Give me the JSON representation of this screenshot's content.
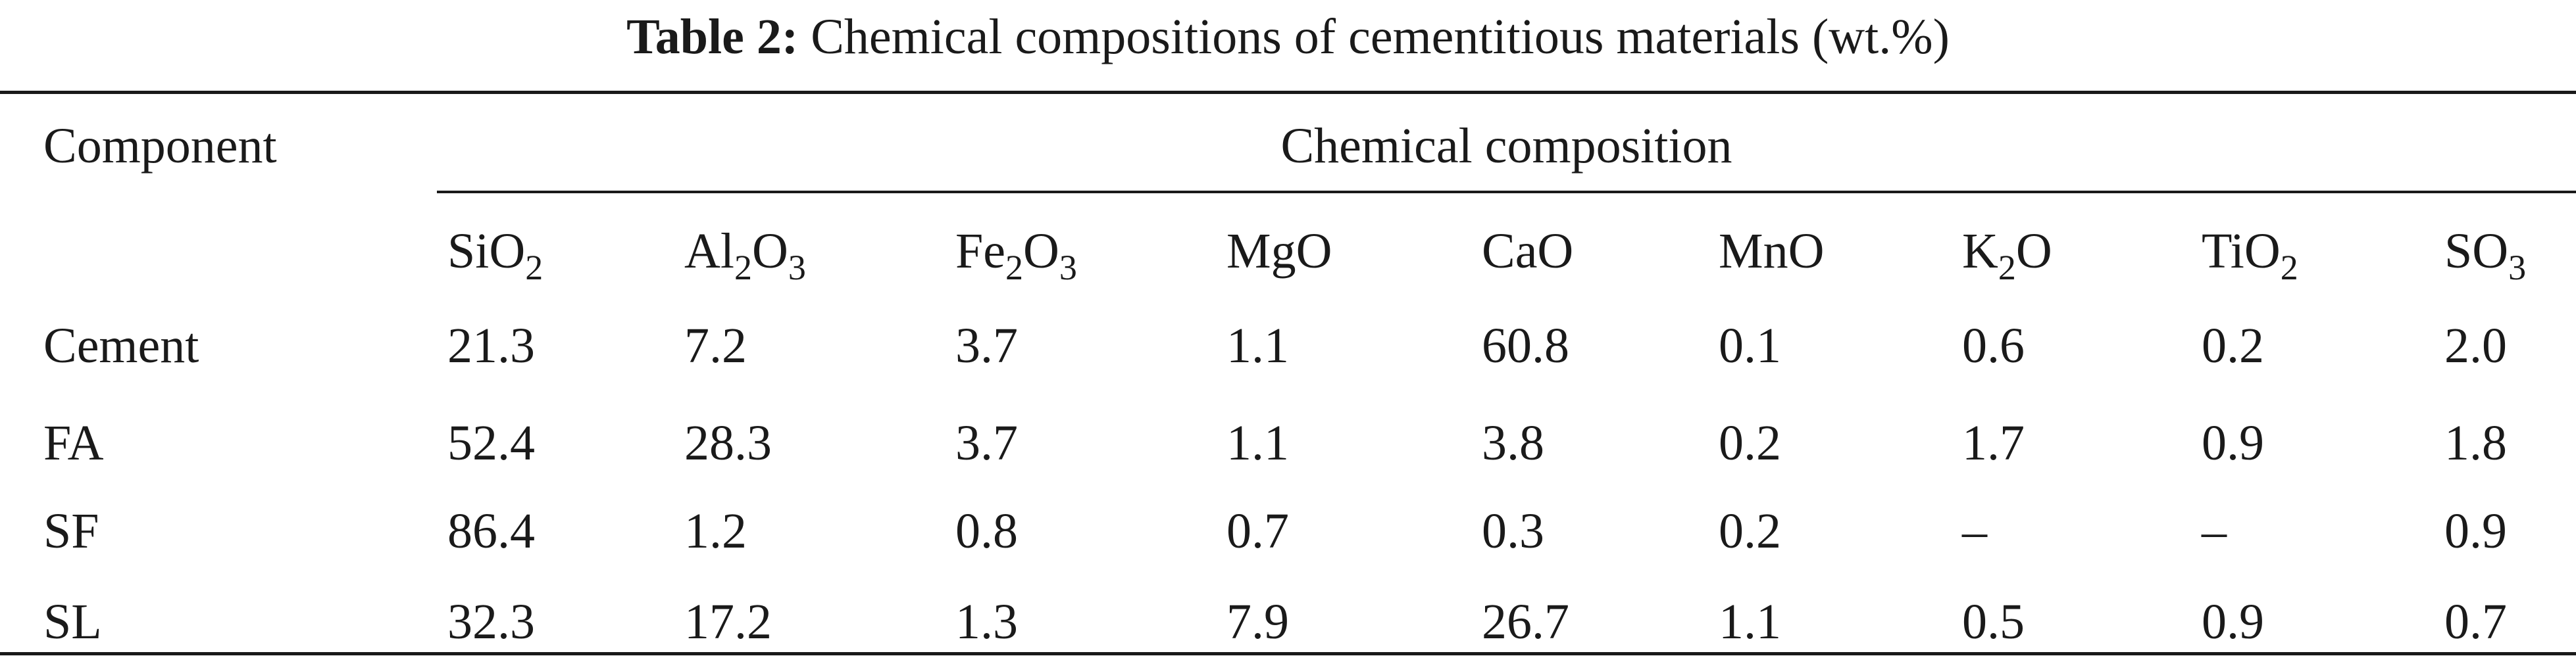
{
  "caption": {
    "label": "Table 2:",
    "text": "Chemical compositions of cementitious materials (wt.%)"
  },
  "table": {
    "stub_header": "Component",
    "span_header": "Chemical composition",
    "columns": [
      {
        "base": "SiO",
        "sub": "2",
        "tail": ""
      },
      {
        "base": "Al",
        "sub": "2",
        "tail": "O",
        "sub2": "3"
      },
      {
        "base": "Fe",
        "sub": "2",
        "tail": "O",
        "sub2": "3"
      },
      {
        "base": "MgO",
        "sub": "",
        "tail": ""
      },
      {
        "base": "CaO",
        "sub": "",
        "tail": ""
      },
      {
        "base": "MnO",
        "sub": "",
        "tail": ""
      },
      {
        "base": "K",
        "sub": "2",
        "tail": "O"
      },
      {
        "base": "TiO",
        "sub": "2",
        "tail": ""
      },
      {
        "base": "SO",
        "sub": "3",
        "tail": ""
      }
    ],
    "rows": [
      {
        "component": "Cement",
        "values": [
          "21.3",
          "7.2",
          "3.7",
          "1.1",
          "60.8",
          "0.1",
          "0.6",
          "0.2",
          "2.0"
        ]
      },
      {
        "component": "FA",
        "values": [
          "52.4",
          "28.3",
          "3.7",
          "1.1",
          "3.8",
          "0.2",
          "1.7",
          "0.9",
          "1.8"
        ]
      },
      {
        "component": "SF",
        "values": [
          "86.4",
          "1.2",
          "0.8",
          "0.7",
          "0.3",
          "0.2",
          "–",
          "–",
          "0.9"
        ]
      },
      {
        "component": "SL",
        "values": [
          "32.3",
          "17.2",
          "1.3",
          "7.9",
          "26.7",
          "1.1",
          "0.5",
          "0.9",
          "0.7"
        ]
      }
    ]
  }
}
